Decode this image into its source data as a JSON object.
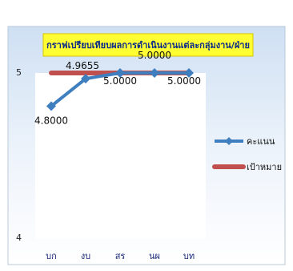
{
  "chart_data": {
    "type": "line",
    "title": "กราฟเปรียบเทียบผลการดำเนินงานแต่ละกลุ่มงาน/ฝ่าย",
    "xlabel": "",
    "ylabel": "",
    "categories": [
      "บก",
      "งบ",
      "สร",
      "นผ",
      "บท"
    ],
    "ylim": [
      4,
      5
    ],
    "yticks": [
      "4",
      "5"
    ],
    "series": [
      {
        "name": "คะแนน",
        "values": [
          4.8,
          4.9655,
          5.0,
          5.0,
          5.0
        ],
        "labels": [
          "4.8000",
          "4.9655",
          "5.0000",
          "5.0000",
          "5.0000"
        ],
        "color": "#3f7fbf"
      },
      {
        "name": "เป้าหมาย",
        "values": [
          5,
          5,
          5,
          5,
          5
        ],
        "color": "#c0504d"
      }
    ],
    "legend_position": "right",
    "grid": false
  }
}
